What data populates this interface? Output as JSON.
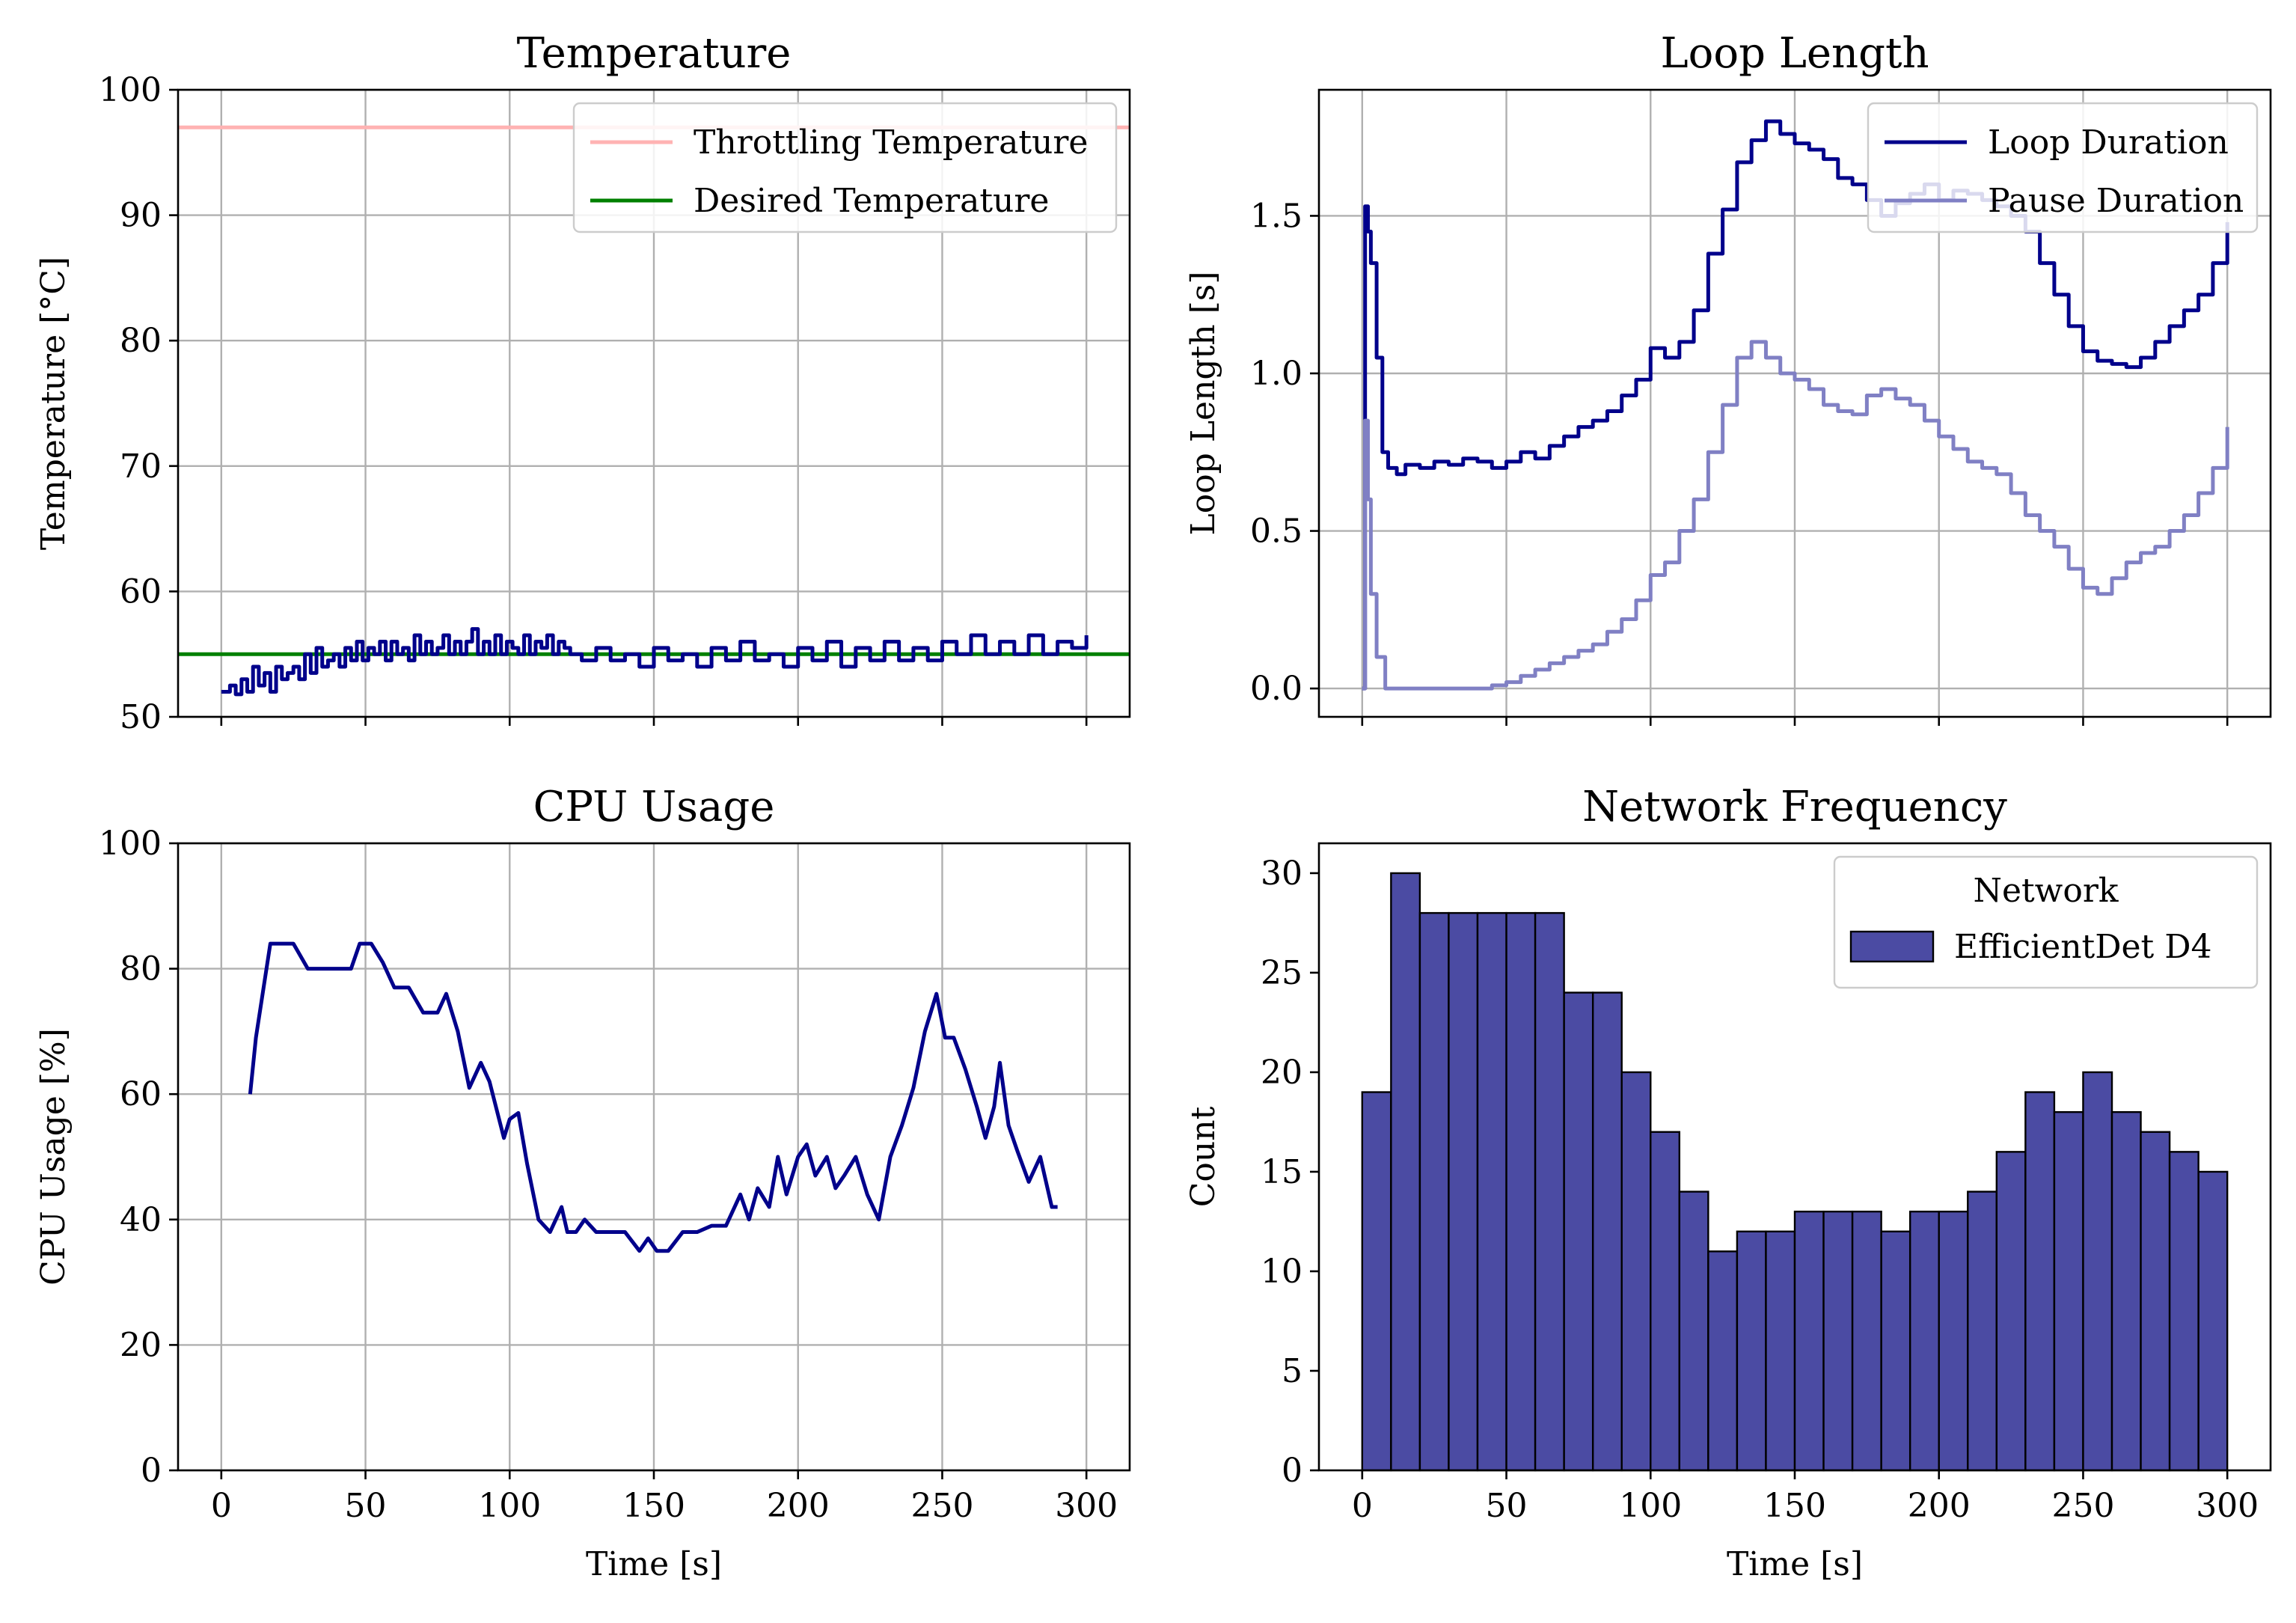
{
  "chart_data": [
    {
      "id": "temperature",
      "type": "line",
      "title": "Temperature",
      "xlabel": "",
      "ylabel": "Temperature [$^{\\circ}$C]",
      "ylabel_display": "Temperature [°C]",
      "xlim": [
        -15,
        315
      ],
      "ylim": [
        50,
        100
      ],
      "xticks": [
        0,
        50,
        100,
        150,
        200,
        250,
        300
      ],
      "yticks": [
        50,
        60,
        70,
        80,
        90,
        100
      ],
      "xticklabels_visible": false,
      "grid": true,
      "legend": "top-right",
      "series": [
        {
          "name": "Throttling Temperature",
          "color": "#ffb3b3",
          "kind": "hline",
          "y": 97
        },
        {
          "name": "Desired Temperature",
          "color": "#008000",
          "kind": "hline",
          "y": 55
        },
        {
          "name": "",
          "color": "#00008b",
          "kind": "step",
          "x": [
            0,
            3,
            5,
            7,
            9,
            11,
            13,
            15,
            17,
            19,
            21,
            23,
            25,
            27,
            29,
            31,
            33,
            35,
            37,
            39,
            41,
            43,
            45,
            47,
            49,
            51,
            53,
            55,
            57,
            59,
            61,
            63,
            65,
            67,
            69,
            71,
            73,
            75,
            77,
            79,
            81,
            83,
            85,
            87,
            89,
            91,
            93,
            95,
            97,
            99,
            101,
            103,
            105,
            107,
            109,
            111,
            113,
            115,
            117,
            119,
            121,
            125,
            130,
            135,
            140,
            145,
            150,
            155,
            160,
            165,
            170,
            175,
            180,
            185,
            190,
            195,
            200,
            205,
            210,
            215,
            220,
            225,
            230,
            235,
            240,
            245,
            250,
            255,
            260,
            265,
            270,
            275,
            280,
            285,
            290,
            295,
            300
          ],
          "y": [
            52,
            52.5,
            51.8,
            53,
            52,
            54,
            52.5,
            53.5,
            52,
            54,
            53,
            53.5,
            54,
            53,
            55,
            53.5,
            55.5,
            54,
            54.5,
            55,
            54,
            55.5,
            54.5,
            56,
            54.5,
            55.5,
            55,
            56,
            54.5,
            56,
            55,
            55.5,
            54.5,
            56.5,
            55,
            56,
            55,
            55.5,
            56.5,
            55,
            56,
            55,
            56,
            57,
            55,
            56,
            55,
            56.5,
            55,
            56,
            55.5,
            55,
            56.5,
            55,
            56,
            55.5,
            56.5,
            55,
            56,
            55.5,
            55,
            54.5,
            55.5,
            54.5,
            55,
            54,
            55.5,
            54.5,
            55,
            54,
            55.5,
            54.5,
            56,
            54.5,
            55,
            54,
            55.5,
            54.5,
            56,
            54,
            55.5,
            54.5,
            56,
            54.5,
            55.5,
            54.5,
            56,
            55,
            56.5,
            55,
            56,
            55,
            56.5,
            55,
            56,
            55.5,
            56.5
          ]
        }
      ]
    },
    {
      "id": "loop-length",
      "type": "line",
      "title": "Loop Length",
      "xlabel": "",
      "ylabel": "Loop Length [s]",
      "xlim": [
        -15,
        315
      ],
      "ylim": [
        -0.09,
        1.9
      ],
      "xticks": [
        0,
        50,
        100,
        150,
        200,
        250,
        300
      ],
      "yticks": [
        0.0,
        0.5,
        1.0,
        1.5
      ],
      "yticklabels": [
        "0.0",
        "0.5",
        "1.0",
        "1.5"
      ],
      "xticklabels_visible": false,
      "grid": true,
      "legend": "top-right",
      "series": [
        {
          "name": "Loop Duration",
          "color": "#00008b",
          "kind": "step",
          "x": [
            0,
            1,
            2,
            3,
            5,
            7,
            9,
            12,
            15,
            20,
            25,
            30,
            35,
            40,
            45,
            50,
            55,
            60,
            65,
            70,
            75,
            80,
            85,
            90,
            95,
            100,
            105,
            110,
            115,
            120,
            125,
            130,
            135,
            140,
            145,
            150,
            155,
            160,
            165,
            170,
            175,
            180,
            185,
            190,
            195,
            200,
            205,
            210,
            215,
            220,
            225,
            230,
            235,
            240,
            245,
            250,
            255,
            260,
            265,
            270,
            275,
            280,
            285,
            290,
            295,
            300
          ],
          "y": [
            0,
            1.53,
            1.45,
            1.35,
            1.05,
            0.75,
            0.7,
            0.68,
            0.71,
            0.7,
            0.72,
            0.71,
            0.73,
            0.72,
            0.7,
            0.72,
            0.75,
            0.73,
            0.77,
            0.8,
            0.83,
            0.85,
            0.88,
            0.93,
            0.98,
            1.08,
            1.05,
            1.1,
            1.2,
            1.38,
            1.52,
            1.67,
            1.74,
            1.8,
            1.76,
            1.73,
            1.71,
            1.68,
            1.62,
            1.6,
            1.55,
            1.5,
            1.54,
            1.57,
            1.6,
            1.55,
            1.58,
            1.57,
            1.55,
            1.53,
            1.5,
            1.45,
            1.35,
            1.25,
            1.15,
            1.07,
            1.04,
            1.03,
            1.02,
            1.05,
            1.1,
            1.15,
            1.2,
            1.25,
            1.35,
            1.48
          ]
        },
        {
          "name": "Pause Duration",
          "color": "#8080c4",
          "kind": "step",
          "x": [
            0,
            1,
            2,
            3,
            5,
            8,
            10,
            20,
            30,
            40,
            45,
            50,
            55,
            60,
            65,
            70,
            75,
            80,
            85,
            90,
            95,
            100,
            105,
            110,
            115,
            120,
            125,
            130,
            135,
            140,
            145,
            150,
            155,
            160,
            165,
            170,
            175,
            180,
            185,
            190,
            195,
            200,
            205,
            210,
            215,
            220,
            225,
            230,
            235,
            240,
            245,
            250,
            255,
            260,
            265,
            270,
            275,
            280,
            285,
            290,
            295,
            300
          ],
          "y": [
            0,
            0.85,
            0.6,
            0.3,
            0.1,
            0,
            0,
            0,
            0,
            0,
            0.01,
            0.02,
            0.04,
            0.06,
            0.08,
            0.1,
            0.12,
            0.14,
            0.18,
            0.22,
            0.28,
            0.36,
            0.4,
            0.5,
            0.6,
            0.75,
            0.9,
            1.05,
            1.1,
            1.05,
            1.0,
            0.98,
            0.95,
            0.9,
            0.88,
            0.87,
            0.93,
            0.95,
            0.92,
            0.9,
            0.85,
            0.8,
            0.76,
            0.72,
            0.7,
            0.68,
            0.62,
            0.55,
            0.5,
            0.45,
            0.38,
            0.32,
            0.3,
            0.35,
            0.4,
            0.43,
            0.45,
            0.5,
            0.55,
            0.62,
            0.7,
            0.83
          ]
        }
      ]
    },
    {
      "id": "cpu-usage",
      "type": "line",
      "title": "CPU Usage",
      "xlabel": "Time [s]",
      "ylabel": "CPU Usage [%]",
      "xlim": [
        -15,
        315
      ],
      "ylim": [
        0,
        100
      ],
      "xticks": [
        0,
        50,
        100,
        150,
        200,
        250,
        300
      ],
      "yticks": [
        0,
        20,
        40,
        60,
        80,
        100
      ],
      "grid": true,
      "legend": "none",
      "series": [
        {
          "name": "",
          "color": "#00008b",
          "kind": "line",
          "x": [
            10,
            12,
            14,
            17,
            20,
            25,
            30,
            35,
            40,
            45,
            48,
            52,
            56,
            60,
            65,
            70,
            75,
            78,
            82,
            86,
            90,
            93,
            98,
            100,
            103,
            106,
            110,
            114,
            118,
            120,
            123,
            126,
            130,
            135,
            140,
            145,
            148,
            151,
            155,
            160,
            165,
            170,
            175,
            178,
            180,
            183,
            186,
            190,
            193,
            196,
            200,
            203,
            206,
            210,
            213,
            216,
            220,
            224,
            228,
            232,
            236,
            240,
            244,
            248,
            251,
            254,
            258,
            262,
            265,
            268,
            270,
            273,
            276,
            280,
            284,
            288,
            290
          ],
          "y": [
            60,
            69,
            75,
            84,
            84,
            84,
            80,
            80,
            80,
            80,
            84,
            84,
            81,
            77,
            77,
            73,
            73,
            76,
            70,
            61,
            65,
            62,
            53,
            56,
            57,
            49,
            40,
            38,
            42,
            38,
            38,
            40,
            38,
            38,
            38,
            35,
            37,
            35,
            35,
            38,
            38,
            39,
            39,
            42,
            44,
            40,
            45,
            42,
            50,
            44,
            50,
            52,
            47,
            50,
            45,
            47,
            50,
            44,
            40,
            50,
            55,
            61,
            70,
            76,
            69,
            69,
            64,
            58,
            53,
            58,
            65,
            55,
            51,
            46,
            50,
            42,
            42
          ]
        }
      ]
    },
    {
      "id": "network-frequency",
      "type": "bar",
      "title": "Network Frequency",
      "xlabel": "Time [s]",
      "ylabel": "Count",
      "xlim": [
        -15,
        315
      ],
      "ylim": [
        0,
        31.5
      ],
      "xticks": [
        0,
        50,
        100,
        150,
        200,
        250,
        300
      ],
      "yticks": [
        0,
        5,
        10,
        15,
        20,
        25,
        30
      ],
      "grid": false,
      "legend": "top-right",
      "legend_title": "Network",
      "bin_width": 10,
      "bin_edges_start": 0,
      "series": [
        {
          "name": "EfficientDet D4",
          "color": "#4b4ba3",
          "values": [
            19,
            30,
            28,
            28,
            28,
            28,
            28,
            24,
            24,
            20,
            17,
            14,
            11,
            12,
            12,
            13,
            13,
            13,
            12,
            13,
            13,
            14,
            16,
            19,
            18,
            20,
            18,
            17,
            16,
            15
          ]
        }
      ]
    }
  ]
}
